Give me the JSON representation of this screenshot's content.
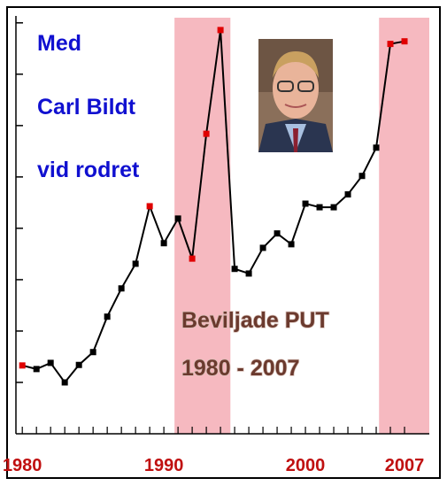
{
  "chart_data": {
    "type": "line",
    "annotations": [
      "Med",
      "Carl Bildt",
      "vid rodret"
    ],
    "label_lines": [
      "Beviljade PUT",
      "1980 - 2007"
    ],
    "x": [
      1980,
      1981,
      1982,
      1983,
      1984,
      1985,
      1986,
      1987,
      1988,
      1989,
      1990,
      1991,
      1992,
      1993,
      1994,
      1995,
      1996,
      1997,
      1998,
      1999,
      2000,
      2001,
      2002,
      2003,
      2004,
      2005,
      2006,
      2007
    ],
    "series": [
      {
        "color": "#000000",
        "values": [
          1.33,
          1.26,
          1.38,
          1.0,
          1.34,
          1.59,
          2.28,
          2.83,
          3.31,
          4.43,
          3.71,
          4.19,
          3.41,
          5.84,
          7.86,
          3.21,
          3.12,
          3.62,
          3.9,
          3.69,
          4.48,
          4.41,
          4.41,
          4.66,
          5.02,
          5.57,
          7.59,
          7.64
        ]
      }
    ],
    "highlighted_x": [
      1980,
      1989,
      1992,
      1993,
      1994,
      2006,
      2007
    ],
    "highlight_color": "#e00000",
    "shaded_periods": [
      [
        1990.75,
        1994.7
      ],
      [
        2005.2,
        2008.75
      ]
    ],
    "shade_color": "#f6b9c0",
    "xlim": [
      1979.55,
      2008.75
    ],
    "xticks": [
      1980,
      1990,
      2000,
      2007
    ],
    "ylim": [
      0,
      8.1
    ],
    "yticks": [
      1,
      2,
      3,
      4,
      5,
      6,
      7,
      8
    ]
  }
}
